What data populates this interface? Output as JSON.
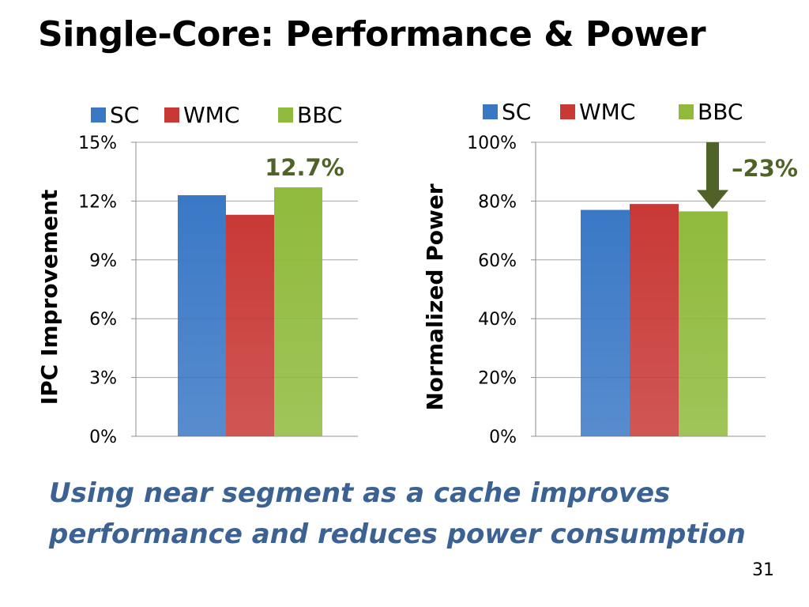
{
  "slide": {
    "title": "Single-Core: Performance & Power",
    "conclusion_line1": "Using near segment as a cache improves",
    "conclusion_line2": "performance and reduces power consumption",
    "page_number": "31"
  },
  "chart_data": [
    {
      "type": "bar",
      "categories": [
        ""
      ],
      "series": [
        {
          "name": "SC",
          "values": [
            12.3
          ]
        },
        {
          "name": "WMC",
          "values": [
            11.3
          ]
        },
        {
          "name": "BBC",
          "values": [
            12.7
          ]
        }
      ],
      "ylabel": "IPC Improvement",
      "ylim": [
        0,
        15
      ],
      "yticks": [
        "0%",
        "3%",
        "6%",
        "9%",
        "12%",
        "15%"
      ],
      "legend": "top",
      "grid": true,
      "annotation": "12.7%"
    },
    {
      "type": "bar",
      "categories": [
        ""
      ],
      "series": [
        {
          "name": "SC",
          "values": [
            77
          ]
        },
        {
          "name": "WMC",
          "values": [
            79
          ]
        },
        {
          "name": "BBC",
          "values": [
            76.5
          ]
        }
      ],
      "ylabel": "Normalized Power",
      "ylim": [
        0,
        100
      ],
      "yticks": [
        "0%",
        "20%",
        "40%",
        "60%",
        "80%",
        "100%"
      ],
      "legend": "top",
      "grid": true,
      "annotation": "–23%"
    }
  ],
  "colors": {
    "series": [
      "#3a78c6",
      "#c83936",
      "#8fba3c"
    ],
    "annotation_chart1": "#4f6228",
    "annotation_chart2": "#4f6228",
    "arrow": "#4f6228",
    "conclusion": "#3b6293"
  },
  "icons": {
    "arrow": "down-arrow-icon"
  }
}
